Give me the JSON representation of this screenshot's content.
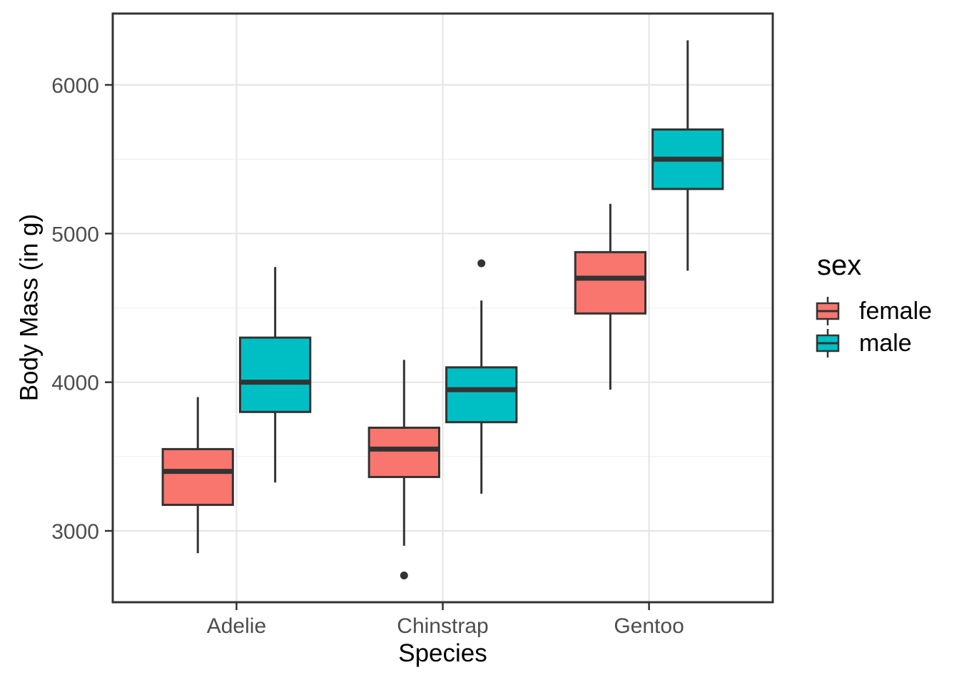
{
  "chart_data": {
    "type": "boxplot",
    "title": "",
    "xlabel": "Species",
    "ylabel": "Body Mass (in g)",
    "categories": [
      "Adelie",
      "Chinstrap",
      "Gentoo"
    ],
    "y_ticks": [
      3000,
      4000,
      5000,
      6000
    ],
    "y_minor_gridlines": [
      3500,
      4500,
      5500
    ],
    "ylim": [
      2520,
      6480
    ],
    "grid": "on",
    "legend": {
      "title": "sex",
      "position": "right",
      "entries": [
        {
          "label": "female",
          "color": "#F8766D"
        },
        {
          "label": "male",
          "color": "#00BFC4"
        }
      ]
    },
    "series": [
      {
        "name": "female",
        "color": "#F8766D",
        "boxes": [
          {
            "category": "Adelie",
            "whisker_low": 2850,
            "q1": 3175,
            "median": 3400,
            "q3": 3550,
            "whisker_high": 3900,
            "outliers": []
          },
          {
            "category": "Chinstrap",
            "whisker_low": 2900,
            "q1": 3362.5,
            "median": 3550,
            "q3": 3693.75,
            "whisker_high": 4150,
            "outliers": [
              2700
            ]
          },
          {
            "category": "Gentoo",
            "whisker_low": 3950,
            "q1": 4462.5,
            "median": 4700,
            "q3": 4875,
            "whisker_high": 5200,
            "outliers": []
          }
        ]
      },
      {
        "name": "male",
        "color": "#00BFC4",
        "boxes": [
          {
            "category": "Adelie",
            "whisker_low": 3325,
            "q1": 3800,
            "median": 4000,
            "q3": 4300,
            "whisker_high": 4775,
            "outliers": []
          },
          {
            "category": "Chinstrap",
            "whisker_low": 3250,
            "q1": 3731.25,
            "median": 3950,
            "q3": 4100,
            "whisker_high": 4550,
            "outliers": [
              4800
            ]
          },
          {
            "category": "Gentoo",
            "whisker_low": 4750,
            "q1": 5300,
            "median": 5500,
            "q3": 5700,
            "whisker_high": 6300,
            "outliers": []
          }
        ]
      }
    ],
    "style": {
      "panel_bg": "#FFFFFF",
      "panel_border": "#333333",
      "box_border": "#333333",
      "grid_major": "#E6E6E6",
      "grid_minor": "#EFEFEF",
      "tick_label_color": "#4D4D4D",
      "axis_title_color": "#000000"
    }
  }
}
